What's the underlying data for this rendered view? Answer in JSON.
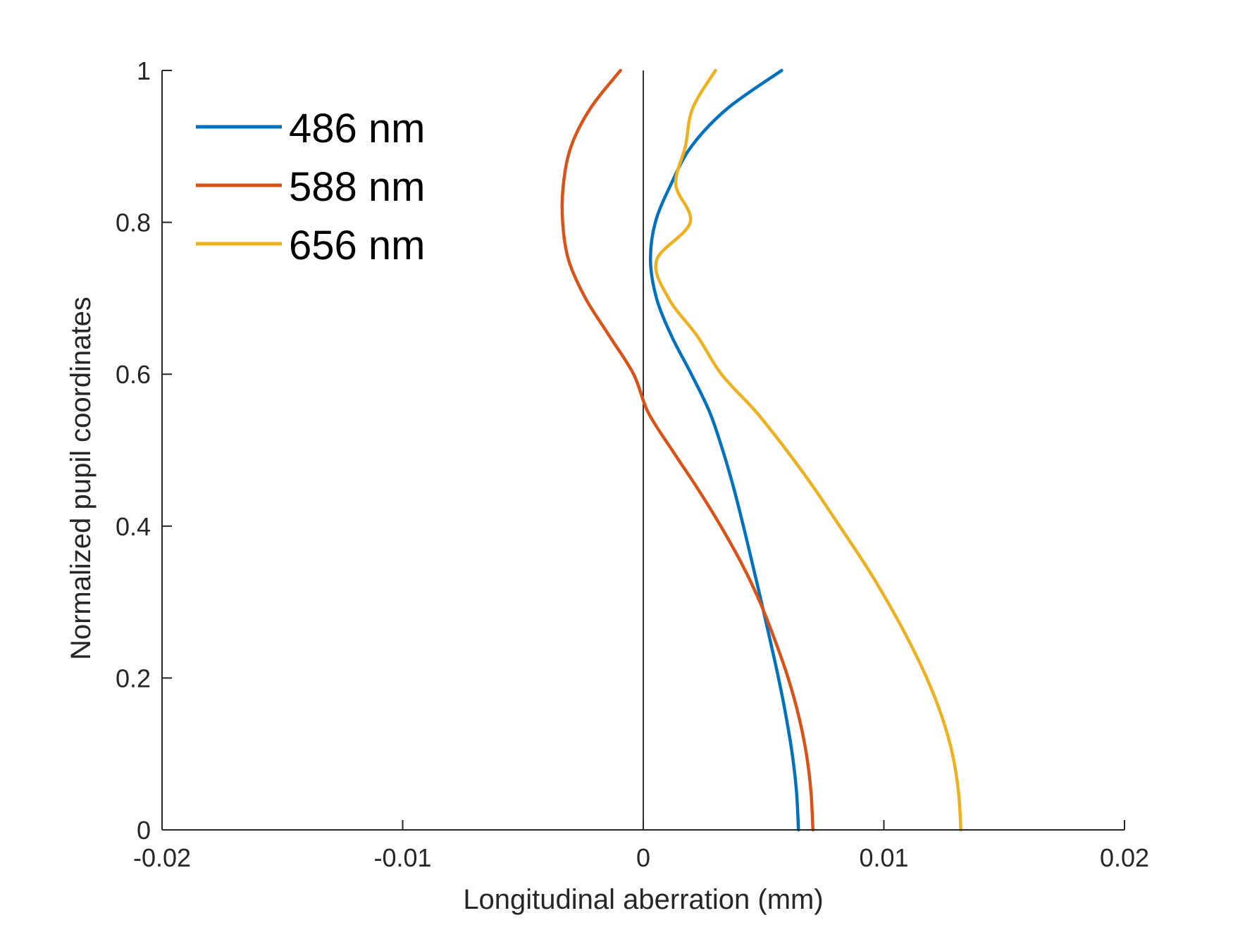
{
  "chart_data": {
    "type": "line",
    "xlabel": "Longitudinal aberration (mm)",
    "ylabel": "Normalized pupil coordinates",
    "xlim": [
      -0.02,
      0.02
    ],
    "ylim": [
      0,
      1
    ],
    "xticks": [
      -0.02,
      -0.01,
      0,
      0.01,
      0.02
    ],
    "xtick_labels": [
      "-0.02",
      "-0.01",
      "0",
      "0.01",
      "0.02"
    ],
    "yticks": [
      0,
      0.2,
      0.4,
      0.6,
      0.8,
      1
    ],
    "ytick_labels": [
      "0",
      "0.2",
      "0.4",
      "0.6",
      "0.8",
      "1"
    ],
    "grid": false,
    "legend_position": "top-left",
    "reference_line": {
      "x": 0,
      "color": "#000000"
    },
    "series": [
      {
        "name": "486 nm",
        "color": "#0072BD",
        "points": [
          [
            0.00645,
            0.0
          ],
          [
            0.00637,
            0.05
          ],
          [
            0.00619,
            0.1
          ],
          [
            0.00593,
            0.15
          ],
          [
            0.00562,
            0.2
          ],
          [
            0.00527,
            0.25
          ],
          [
            0.00491,
            0.3
          ],
          [
            0.00454,
            0.35
          ],
          [
            0.00416,
            0.4
          ],
          [
            0.00376,
            0.45
          ],
          [
            0.0033,
            0.5
          ],
          [
            0.00276,
            0.55
          ],
          [
            0.002,
            0.6
          ],
          [
            0.00118,
            0.65
          ],
          [
            0.00055,
            0.7
          ],
          [
            0.0003,
            0.75
          ],
          [
            0.0005,
            0.8
          ],
          [
            0.00115,
            0.85
          ],
          [
            0.002,
            0.9
          ],
          [
            0.0035,
            0.95
          ],
          [
            0.00575,
            1.0
          ]
        ]
      },
      {
        "name": "588 nm",
        "color": "#D95319",
        "points": [
          [
            0.00705,
            0.0
          ],
          [
            0.00697,
            0.05
          ],
          [
            0.00678,
            0.1
          ],
          [
            0.00646,
            0.15
          ],
          [
            0.00602,
            0.2
          ],
          [
            0.00547,
            0.25
          ],
          [
            0.00485,
            0.3
          ],
          [
            0.0041,
            0.35
          ],
          [
            0.00322,
            0.4
          ],
          [
            0.00225,
            0.45
          ],
          [
            0.0012,
            0.5
          ],
          [
            0.0002,
            0.55
          ],
          [
            -0.0004,
            0.6
          ],
          [
            -0.0014,
            0.65
          ],
          [
            -0.0024,
            0.7
          ],
          [
            -0.0031,
            0.75
          ],
          [
            -0.00335,
            0.8
          ],
          [
            -0.00332,
            0.85
          ],
          [
            -0.003,
            0.9
          ],
          [
            -0.0022,
            0.95
          ],
          [
            -0.00095,
            1.0
          ]
        ]
      },
      {
        "name": "656 nm",
        "color": "#EDB120",
        "points": [
          [
            0.0132,
            0.0
          ],
          [
            0.0131,
            0.05
          ],
          [
            0.01285,
            0.1
          ],
          [
            0.0124,
            0.15
          ],
          [
            0.01178,
            0.2
          ],
          [
            0.01102,
            0.25
          ],
          [
            0.01016,
            0.3
          ],
          [
            0.00921,
            0.35
          ],
          [
            0.00816,
            0.4
          ],
          [
            0.0071,
            0.45
          ],
          [
            0.00595,
            0.5
          ],
          [
            0.0047,
            0.55
          ],
          [
            0.00325,
            0.6
          ],
          [
            0.00225,
            0.65
          ],
          [
            0.00105,
            0.7
          ],
          [
            0.00055,
            0.75
          ],
          [
            0.00195,
            0.8
          ],
          [
            0.00135,
            0.85
          ],
          [
            0.00175,
            0.9
          ],
          [
            0.00205,
            0.95
          ],
          [
            0.003,
            1.0
          ]
        ]
      }
    ]
  }
}
